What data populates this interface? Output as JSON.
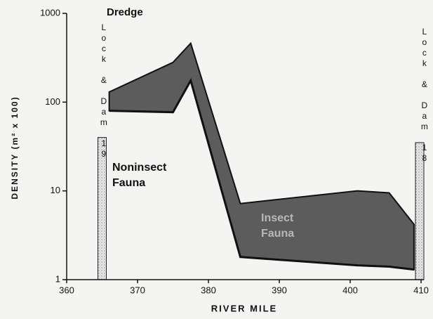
{
  "chart_data": {
    "type": "area",
    "stacked": true,
    "title": "Dredge",
    "x_label": "RIVER MILE",
    "y_label": "DENSITY (m² x 100)",
    "log_y": true,
    "x": [
      366,
      375,
      377.5,
      384.5,
      401,
      405.5,
      409
    ],
    "series": [
      {
        "name": "Noninsect Fauna",
        "color": "#ffffff",
        "values": [
          80,
          77,
          175,
          1.8,
          1.45,
          1.4,
          1.3
        ]
      },
      {
        "name": "Insect Fauna",
        "color": "#5c5c5c",
        "values": [
          50,
          203,
          285,
          5.4,
          8.55,
          8.1,
          2.9
        ]
      }
    ],
    "dams": [
      {
        "label": "Lock & Dam 19",
        "x": 365,
        "value": 40
      },
      {
        "label": "Lock & Dam 18",
        "x": 409.8,
        "value": 35
      }
    ],
    "xlim": [
      360,
      410
    ],
    "xticks": [
      360,
      370,
      380,
      390,
      400,
      410
    ],
    "ylim": [
      1,
      1000
    ],
    "yticks": [
      1,
      10,
      100,
      1000
    ]
  }
}
